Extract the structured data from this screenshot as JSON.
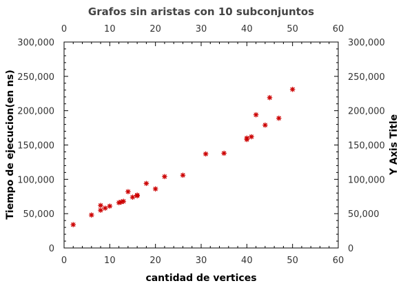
{
  "chart_data": {
    "type": "scatter",
    "title": "Grafos sin aristas con 10 subconjuntos",
    "xlabel": "cantidad de vertices",
    "ylabel": "Tiempo de ejecucion(en ns)",
    "y2label": "Y Axis Title",
    "xlim": [
      0,
      60
    ],
    "ylim": [
      0,
      300000
    ],
    "x_ticks": [
      "0",
      "10",
      "20",
      "30",
      "40",
      "50",
      "60"
    ],
    "y_ticks": [
      "0",
      "50,000",
      "100,000",
      "150,000",
      "200,000",
      "250,000",
      "300,000"
    ],
    "grid": false,
    "marker": "star",
    "marker_color": "#cc0000",
    "series": [
      {
        "points": [
          [
            2,
            34000
          ],
          [
            6,
            48000
          ],
          [
            8,
            55000
          ],
          [
            8,
            62000
          ],
          [
            9,
            58000
          ],
          [
            10,
            61000
          ],
          [
            12,
            66000
          ],
          [
            12.5,
            67000
          ],
          [
            13,
            68000
          ],
          [
            14,
            82000
          ],
          [
            15,
            74000
          ],
          [
            16,
            76000
          ],
          [
            16,
            77000
          ],
          [
            18,
            94000
          ],
          [
            20,
            86000
          ],
          [
            22,
            104000
          ],
          [
            26,
            106000
          ],
          [
            31,
            137000
          ],
          [
            35,
            138000
          ],
          [
            40,
            158000
          ],
          [
            40,
            160000
          ],
          [
            41,
            162000
          ],
          [
            42,
            194000
          ],
          [
            44,
            179000
          ],
          [
            45,
            219000
          ],
          [
            47,
            189000
          ],
          [
            50,
            231000
          ]
        ]
      }
    ]
  }
}
